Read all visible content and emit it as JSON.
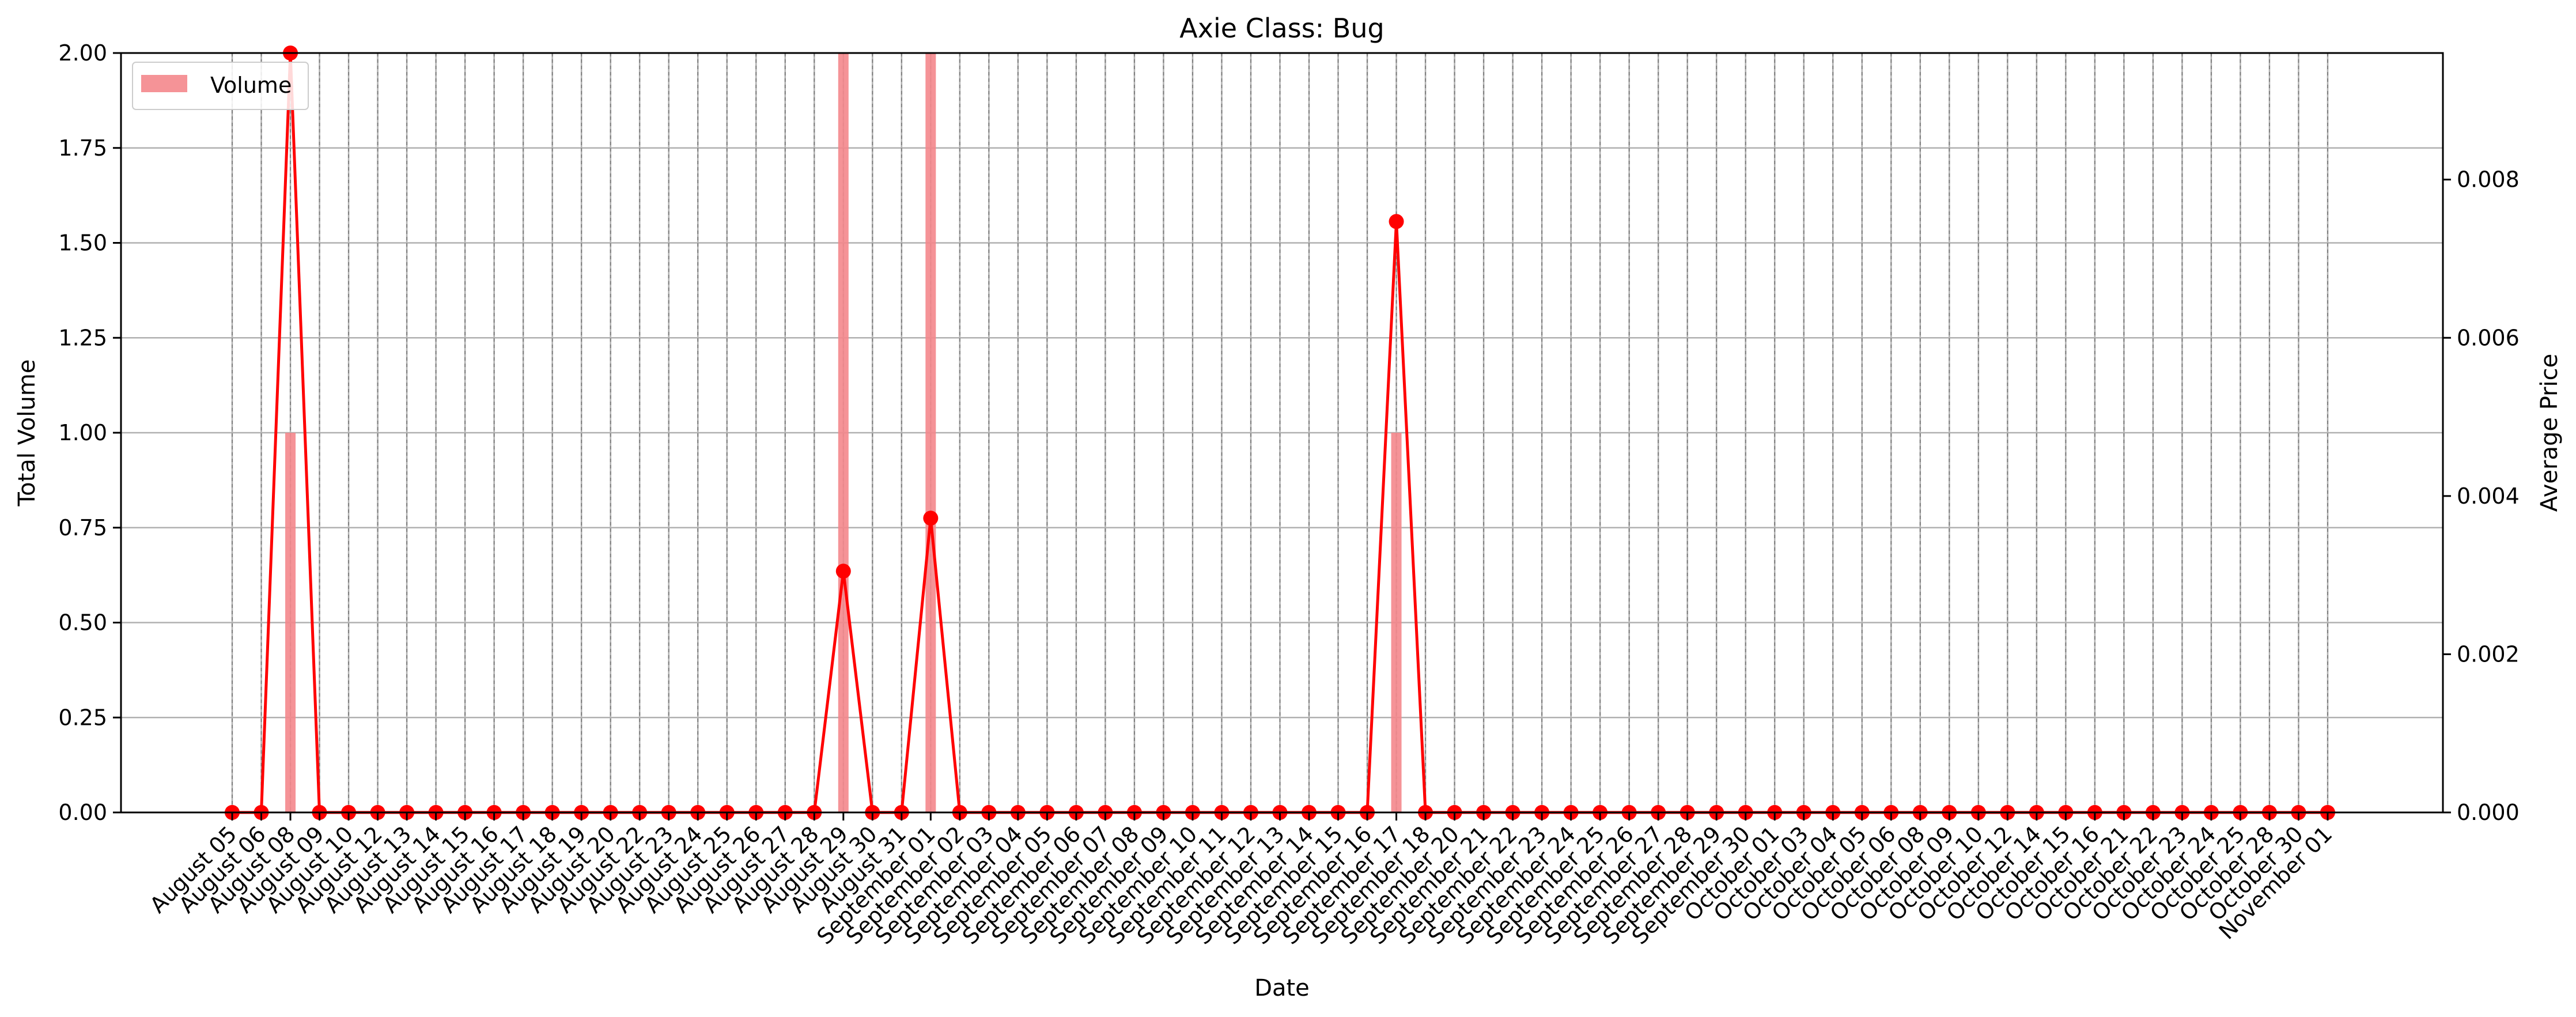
{
  "chart_data": {
    "type": "bar",
    "title": "Axie Class: Bug",
    "xlabel": "Date",
    "ylabel": "Total Volume",
    "y2label": "Average Price",
    "ylim": [
      0,
      2
    ],
    "y2lim": [
      0,
      0.0096
    ],
    "yticks": [
      "0.00",
      "0.25",
      "0.50",
      "0.75",
      "1.00",
      "1.25",
      "1.50",
      "1.75",
      "2.00"
    ],
    "y2ticks": [
      "0.000",
      "0.002",
      "0.004",
      "0.006",
      "0.008"
    ],
    "grid": true,
    "legend": {
      "position": "top-left",
      "entries": [
        "Volume"
      ]
    },
    "colors": {
      "volume": "#f4878c",
      "price": "#ff0000"
    },
    "categories": [
      "August 05",
      "August 06",
      "August 08",
      "August 09",
      "August 10",
      "August 12",
      "August 13",
      "August 14",
      "August 15",
      "August 16",
      "August 17",
      "August 18",
      "August 19",
      "August 20",
      "August 22",
      "August 23",
      "August 24",
      "August 25",
      "August 26",
      "August 27",
      "August 28",
      "August 29",
      "August 30",
      "August 31",
      "September 01",
      "September 02",
      "September 03",
      "September 04",
      "September 05",
      "September 06",
      "September 07",
      "September 08",
      "September 09",
      "September 10",
      "September 11",
      "September 12",
      "September 13",
      "September 14",
      "September 15",
      "September 16",
      "September 17",
      "September 18",
      "September 20",
      "September 21",
      "September 22",
      "September 23",
      "September 24",
      "September 25",
      "September 26",
      "September 27",
      "September 28",
      "September 29",
      "September 30",
      "October 01",
      "October 03",
      "October 04",
      "October 05",
      "October 06",
      "October 08",
      "October 09",
      "October 10",
      "October 12",
      "October 14",
      "October 15",
      "October 16",
      "October 21",
      "October 22",
      "October 23",
      "October 24",
      "October 25",
      "October 28",
      "October 30",
      "November 01"
    ],
    "series": [
      {
        "name": "Volume",
        "type": "bar",
        "axis": "left",
        "values": [
          0,
          0,
          1,
          0,
          0,
          0,
          0,
          0,
          0,
          0,
          0,
          0,
          0,
          0,
          0,
          0,
          0,
          0,
          0,
          0,
          0,
          2,
          0,
          0,
          2,
          0,
          0,
          0,
          0,
          0,
          0,
          0,
          0,
          0,
          0,
          0,
          0,
          0,
          0,
          0,
          1,
          0,
          0,
          0,
          0,
          0,
          0,
          0,
          0,
          0,
          0,
          0,
          0,
          0,
          0,
          0,
          0,
          0,
          0,
          0,
          0,
          0,
          0,
          0,
          0,
          0,
          0,
          0,
          0,
          0,
          0,
          0,
          0
        ]
      },
      {
        "type": "line",
        "axis": "right",
        "values": [
          0,
          0,
          0.0096,
          0,
          0,
          0,
          0,
          0,
          0,
          0,
          0,
          0,
          0,
          0,
          0,
          0,
          0,
          0,
          0,
          0,
          0,
          0.00305,
          0,
          0,
          0.00372,
          0,
          0,
          0,
          0,
          0,
          0,
          0,
          0,
          0,
          0,
          0,
          0,
          0,
          0,
          0,
          0.00747,
          0,
          0,
          0,
          0,
          0,
          0,
          0,
          0,
          0,
          0,
          0,
          0,
          0,
          0,
          0,
          0,
          0,
          0,
          0,
          0,
          0,
          0,
          0,
          0,
          0,
          0,
          0,
          0,
          0,
          0,
          0,
          0
        ]
      }
    ]
  }
}
